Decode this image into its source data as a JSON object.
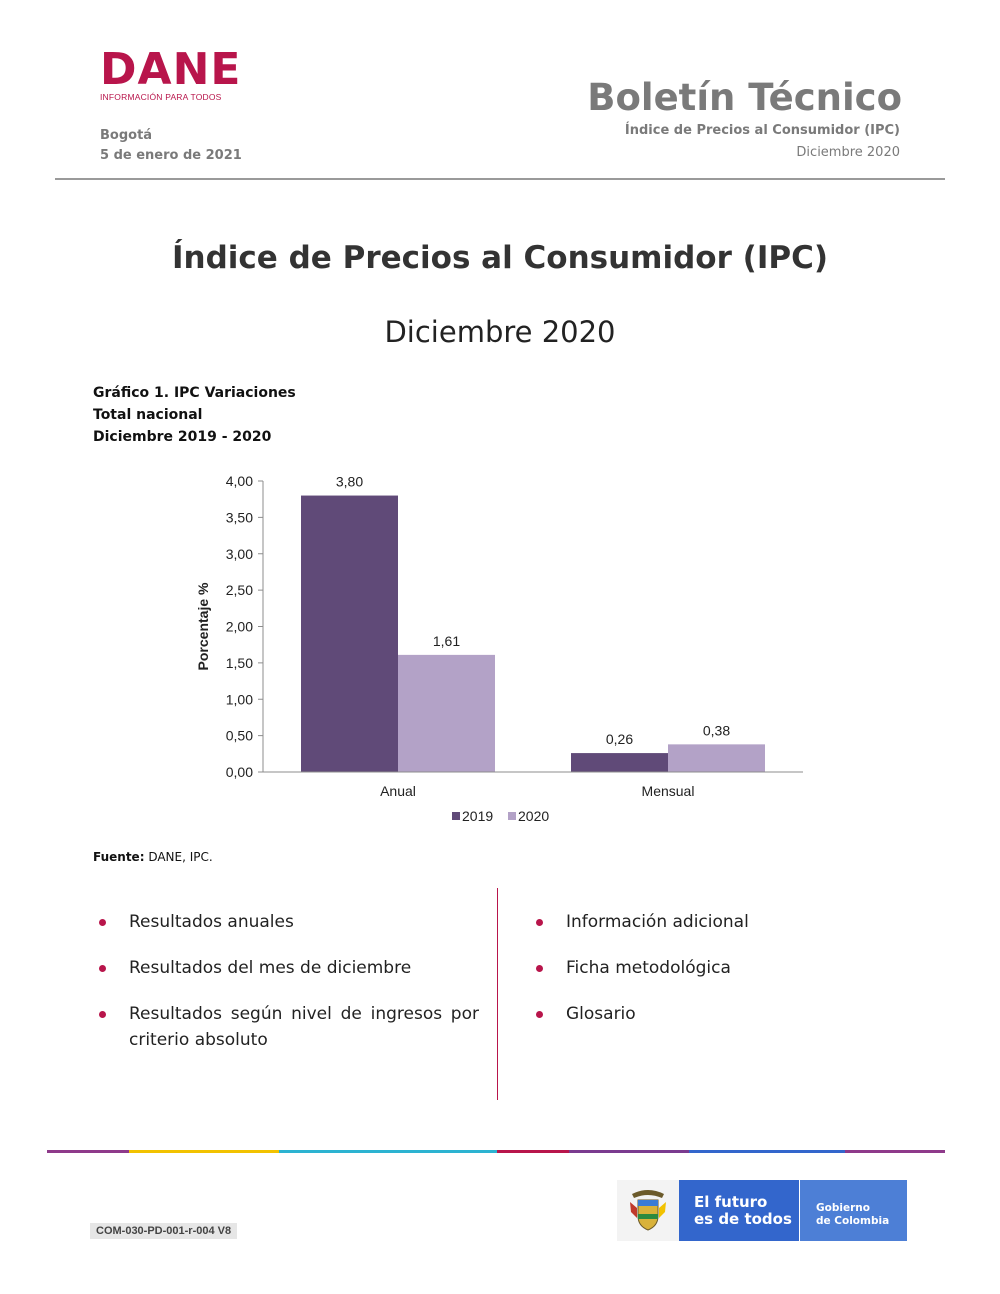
{
  "header": {
    "logo_word": "DANE",
    "logo_tagline": "INFORMACIÓN PARA TODOS",
    "city": "Bogotá",
    "date": "5 de enero de 2021",
    "doc_type": "Boletín Técnico",
    "doc_subject": "Índice de Precios al Consumidor (IPC)",
    "doc_period": "Diciembre 2020"
  },
  "title": {
    "main": "Índice de Precios al Consumidor (IPC)",
    "sub": "Diciembre 2020"
  },
  "chart_caption": {
    "line1": "Gráfico 1. IPC Variaciones",
    "line2": "Total nacional",
    "line3": "Diciembre 2019 - 2020"
  },
  "chart_data": {
    "type": "bar",
    "categories": [
      "Anual",
      "Mensual"
    ],
    "series": [
      {
        "name": "2019",
        "values": [
          3.8,
          0.26
        ],
        "labels": [
          "3,80",
          "0,26"
        ],
        "color": "#604a78"
      },
      {
        "name": "2020",
        "values": [
          1.61,
          0.38
        ],
        "labels": [
          "1,61",
          "0,38"
        ],
        "color": "#b3a2c7"
      }
    ],
    "ylabel": "Porcentaje %",
    "ylim": [
      0,
      4
    ],
    "yticks": [
      "0,00",
      "0,50",
      "1,00",
      "1,50",
      "2,00",
      "2,50",
      "3,00",
      "3,50",
      "4,00"
    ],
    "grid": false,
    "legend": "bottom-center"
  },
  "source": {
    "label": "Fuente:",
    "text": " DANE, IPC."
  },
  "contents_left": [
    "Resultados anuales",
    "Resultados del mes de diciembre",
    "Resultados según nivel de ingresos por criterio absoluto"
  ],
  "contents_right": [
    "Información adicional",
    "Ficha metodológica",
    "Glosario"
  ],
  "footer": {
    "doc_code": "COM-030-PD-001-r-004 V8",
    "gov_slogan_1": "El futuro",
    "gov_slogan_2": "es de todos",
    "gov_name_1": "Gobierno",
    "gov_name_2": "de Colombia",
    "rule_colors": [
      "#8e3a8a",
      "#f2c200",
      "#2cb3d1",
      "#b8154b",
      "#7a3b8f",
      "#3366cc",
      "#8e3a8a"
    ]
  }
}
